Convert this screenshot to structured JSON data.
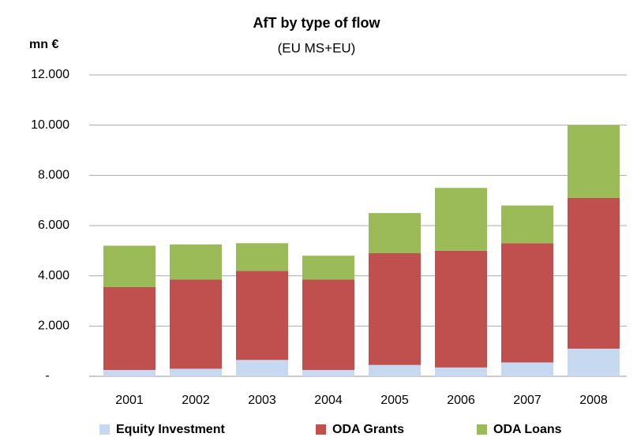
{
  "chart_data": {
    "type": "stacked_bar",
    "title": "AfT by type of flow",
    "subtitle": "(EU MS+EU)",
    "y_label": "mn €",
    "categories": [
      "2001",
      "2002",
      "2003",
      "2004",
      "2005",
      "2006",
      "2007",
      "2008"
    ],
    "series": [
      {
        "name": "Equity Investment",
        "color": "#c6d9f1",
        "values": [
          250,
          300,
          650,
          250,
          450,
          350,
          550,
          1100
        ]
      },
      {
        "name": "ODA Grants",
        "color": "#c0504d",
        "values": [
          3300,
          3550,
          3550,
          3600,
          4450,
          4650,
          4750,
          6000
        ]
      },
      {
        "name": "ODA Loans",
        "color": "#9bbb59",
        "values": [
          1650,
          1400,
          1100,
          950,
          1600,
          2500,
          1500,
          2900
        ]
      }
    ],
    "ylim": [
      0,
      12000
    ],
    "yticks": [
      {
        "value": 0,
        "label": "-"
      },
      {
        "value": 2000,
        "label": "2.000"
      },
      {
        "value": 4000,
        "label": "4.000"
      },
      {
        "value": 6000,
        "label": "6.000"
      },
      {
        "value": 8000,
        "label": "8.000"
      },
      {
        "value": 10000,
        "label": "10.000"
      },
      {
        "value": 12000,
        "label": "12.000"
      }
    ],
    "grid": true,
    "legend": "bottom"
  }
}
